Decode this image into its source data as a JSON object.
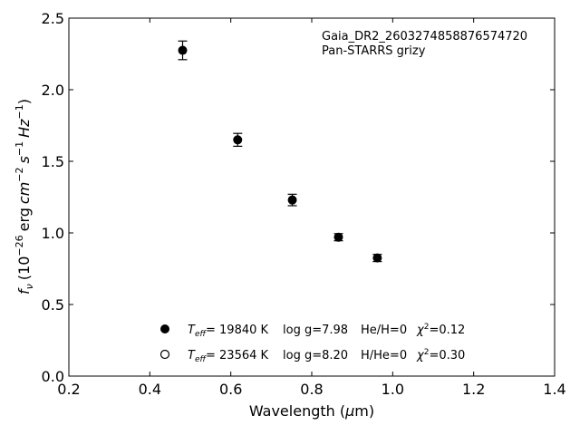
{
  "chart_data": {
    "type": "scatter",
    "title": "",
    "xlabel": {
      "main": "Wavelength (",
      "mu": "μ",
      "unit": "m)"
    },
    "ylabel": {
      "f": "f",
      "nu": "ν",
      "open": "(10",
      "exp1": "−26",
      "erg": "erg",
      "cm": "cm",
      "exp2": "−2",
      "s": "s",
      "exp3": "−1",
      "hz": "Hz",
      "exp4": "−1",
      "close": ")"
    },
    "xlim": [
      0.2,
      1.4
    ],
    "ylim": [
      0.0,
      2.5
    ],
    "xticks": [
      0.2,
      0.4,
      0.6,
      0.8,
      1.0,
      1.2,
      1.4
    ],
    "xtick_labels": [
      "0.2",
      "0.4",
      "0.6",
      "0.8",
      "1.0",
      "1.2",
      "1.4"
    ],
    "yticks": [
      0.0,
      0.5,
      1.0,
      1.5,
      2.0,
      2.5
    ],
    "ytick_labels": [
      "0.0",
      "0.5",
      "1.0",
      "1.5",
      "2.0",
      "2.5"
    ],
    "grid": false,
    "annotations": [
      "Gaia_DR2_2603274858876574720",
      "Pan-STARRS grizy"
    ],
    "series": [
      {
        "marker": "filled-circle",
        "x": [
          0.481,
          0.617,
          0.752,
          0.866,
          0.962
        ],
        "y": [
          2.275,
          1.65,
          1.23,
          0.97,
          0.825
        ],
        "yerr": [
          0.065,
          0.045,
          0.04,
          0.025,
          0.025
        ]
      }
    ],
    "legend": {
      "placement": "lower-center",
      "entries": [
        {
          "marker": "filled-circle",
          "teff": "T",
          "teff_sub": "eff",
          "teff_value": "= 19840 K",
          "logg": "log g=7.98",
          "comp": "He/H=0",
          "chi": "χ",
          "chi_sup": "2",
          "chi_value": "=0.12"
        },
        {
          "marker": "open-circle",
          "teff": "T",
          "teff_sub": "eff",
          "teff_value": "= 23564 K",
          "logg": "log g=8.20",
          "comp": "H/He=0",
          "chi": "χ",
          "chi_sup": "2",
          "chi_value": "=0.30"
        }
      ]
    },
    "colors": {
      "marker": "#000000",
      "axes": "#000000",
      "background": "#ffffff"
    }
  }
}
